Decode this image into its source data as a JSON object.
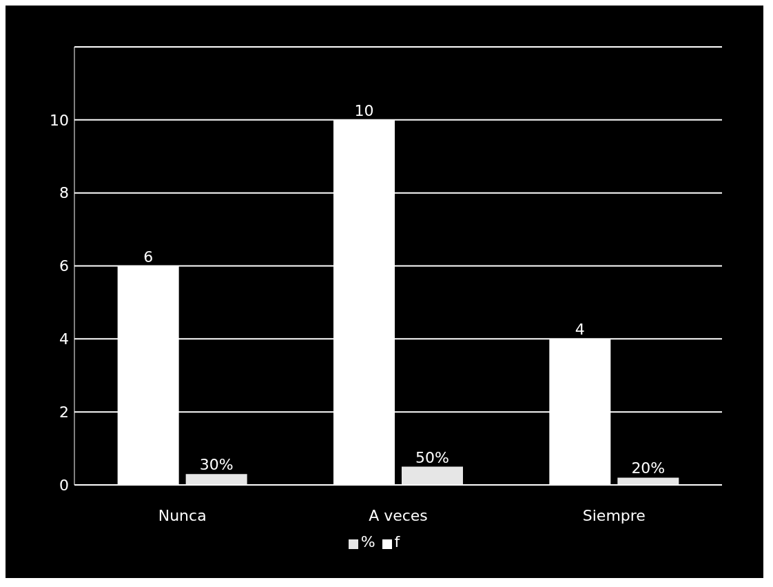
{
  "chart_data": {
    "type": "bar",
    "categories": [
      "Nunca",
      "A veces",
      "Siempre"
    ],
    "series": [
      {
        "name": "f",
        "color": "#ffffff",
        "values": [
          6,
          10,
          4
        ],
        "value_labels": [
          "6",
          "10",
          "4"
        ]
      },
      {
        "name": "%",
        "color": "#e6e6e6",
        "values": [
          0.3,
          0.5,
          0.2
        ],
        "value_labels": [
          "30%",
          "50%",
          "20%"
        ]
      }
    ],
    "ylim": [
      0,
      12
    ],
    "yticks": [
      0,
      2,
      4,
      6,
      8,
      10,
      {
        "value": 12,
        "label": null
      }
    ],
    "grid": "y",
    "legend": "bottom"
  }
}
